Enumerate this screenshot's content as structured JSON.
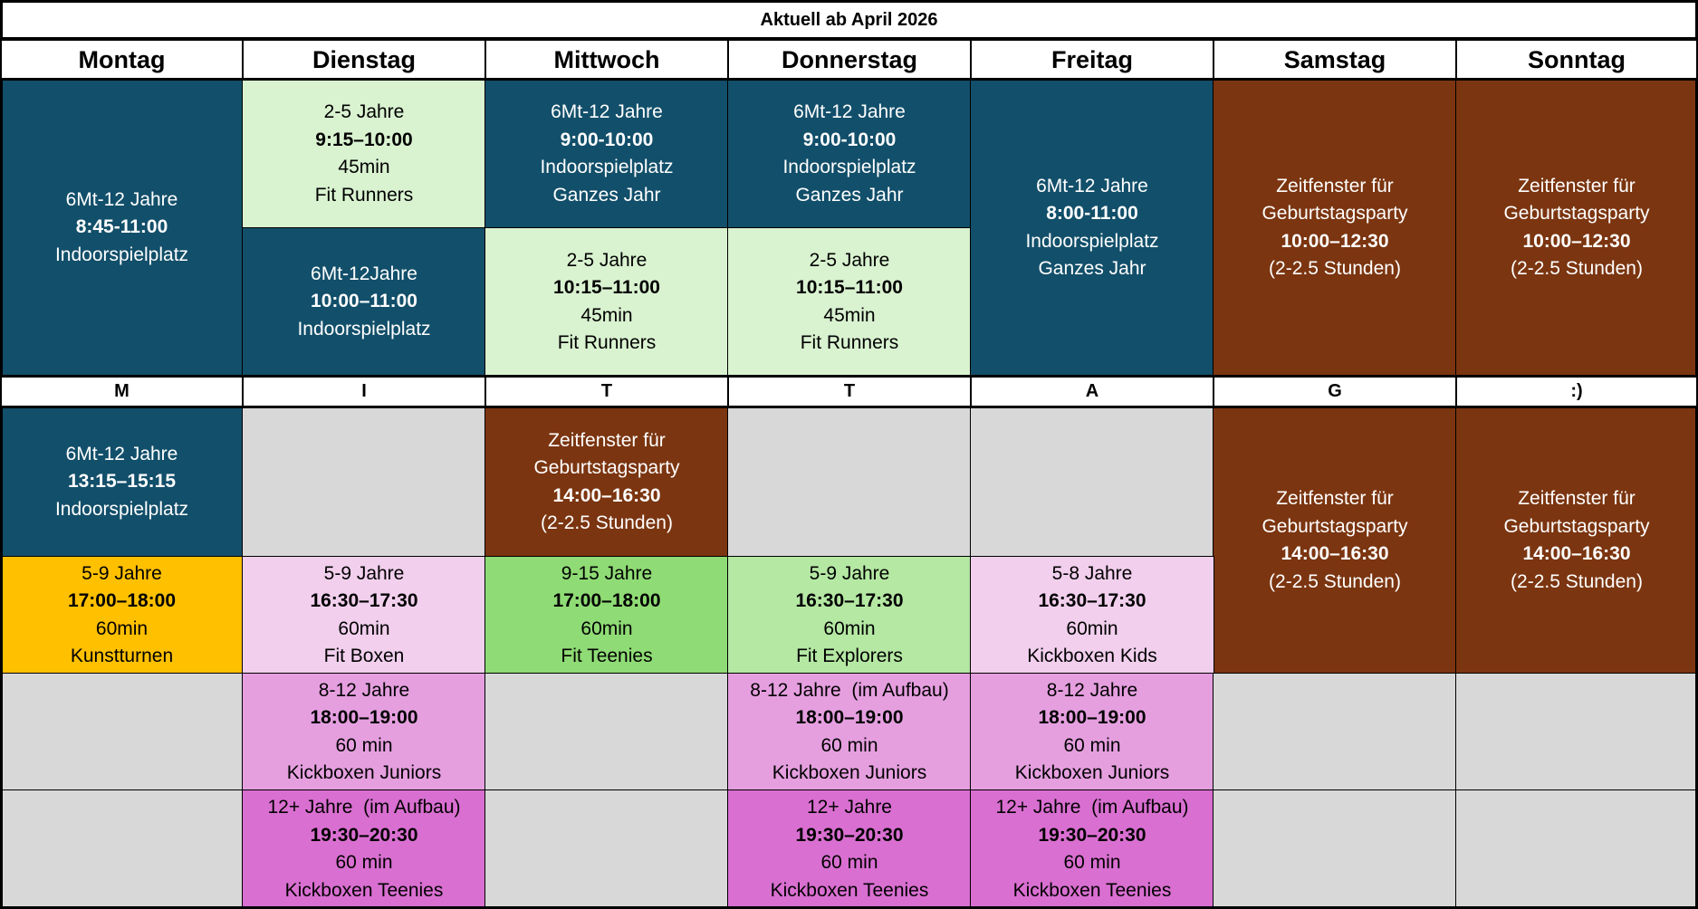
{
  "title": "Aktuell ab April 2026",
  "days": [
    "Montag",
    "Dienstag",
    "Mittwoch",
    "Donnerstag",
    "Freitag",
    "Samstag",
    "Sonntag"
  ],
  "divider_letters": [
    "M",
    "I",
    "T",
    "T",
    "A",
    "G",
    ":)"
  ],
  "colors": {
    "navy": "#124f6a",
    "brown": "#7b3510",
    "lightgreen": "#d9f2d0",
    "gray": "#d8d8d8",
    "orange": "#ffc000",
    "lightpink": "#f1cfed",
    "green": "#8fdb75",
    "palegreen": "#b4e8a3",
    "pink": "#e59fdf",
    "magenta": "#d96fd1"
  },
  "sessions": {
    "mo_morning": {
      "age": "6Mt-12 Jahre",
      "time": "8:45-11:00",
      "name": "Indoorspielplatz"
    },
    "mo_afternoon": {
      "age": "6Mt-12 Jahre",
      "time": "13:15–15:15",
      "name": "Indoorspielplatz"
    },
    "mo_evening": {
      "age": "5-9 Jahre",
      "time": "17:00–18:00",
      "duration": "60min",
      "name": "Kunstturnen"
    },
    "di_morning_1": {
      "age": "2-5 Jahre",
      "time": "9:15–10:00",
      "duration": "45min",
      "name": "Fit Runners"
    },
    "di_morning_2": {
      "age": "6Mt-12Jahre",
      "time": "10:00–11:00",
      "name": "Indoorspielplatz"
    },
    "di_evening_1": {
      "age": "5-9 Jahre",
      "time": "16:30–17:30",
      "duration": "60min",
      "name": "Fit Boxen"
    },
    "di_evening_2": {
      "age": "8-12 Jahre",
      "time": "18:00–19:00",
      "duration": "60 min",
      "name": "Kickboxen Juniors"
    },
    "di_evening_3": {
      "age": "12+ Jahre  (im Aufbau)",
      "time": "19:30–20:30",
      "duration": "60 min",
      "name": "Kickboxen Teenies"
    },
    "mi_morning_1": {
      "age": "6Mt-12 Jahre",
      "time": "9:00-10:00",
      "name": "Indoorspielplatz",
      "note": "Ganzes Jahr"
    },
    "mi_morning_2": {
      "age": "2-5 Jahre",
      "time": "10:15–11:00",
      "duration": "45min",
      "name": "Fit Runners"
    },
    "mi_afternoon": {
      "name": "Zeitfenster für",
      "name2": "Geburtstagsparty",
      "time": "14:00–16:30",
      "note": "(2-2.5 Stunden)"
    },
    "mi_evening_1": {
      "age": "9-15 Jahre",
      "time": "17:00–18:00",
      "duration": "60min",
      "name": "Fit Teenies"
    },
    "do_morning_1": {
      "age": "6Mt-12 Jahre",
      "time": "9:00-10:00",
      "name": "Indoorspielplatz",
      "note": "Ganzes Jahr"
    },
    "do_morning_2": {
      "age": "2-5 Jahre",
      "time": "10:15–11:00",
      "duration": "45min",
      "name": "Fit Runners"
    },
    "do_evening_1": {
      "age": "5-9 Jahre",
      "time": "16:30–17:30",
      "duration": "60min",
      "name": "Fit Explorers"
    },
    "do_evening_2": {
      "age": "8-12 Jahre  (im Aufbau)",
      "time": "18:00–19:00",
      "duration": "60 min",
      "name": "Kickboxen Juniors"
    },
    "do_evening_3": {
      "age": "12+ Jahre",
      "time": "19:30–20:30",
      "duration": "60 min",
      "name": "Kickboxen Teenies"
    },
    "fr_morning": {
      "age": "6Mt-12 Jahre",
      "time": "8:00-11:00",
      "name": "Indoorspielplatz",
      "note": "Ganzes Jahr"
    },
    "fr_evening_1": {
      "age": "5-8 Jahre",
      "time": "16:30–17:30",
      "duration": "60min",
      "name": "Kickboxen Kids"
    },
    "fr_evening_2": {
      "age": "8-12 Jahre",
      "time": "18:00–19:00",
      "duration": "60 min",
      "name": "Kickboxen Juniors"
    },
    "fr_evening_3": {
      "age": "12+ Jahre  (im Aufbau)",
      "time": "19:30–20:30",
      "duration": "60 min",
      "name": "Kickboxen Teenies"
    },
    "sa_morning": {
      "name": "Zeitfenster für",
      "name2": "Geburtstagsparty",
      "time": "10:00–12:30",
      "note": "(2-2.5 Stunden)"
    },
    "sa_afternoon": {
      "name": "Zeitfenster für",
      "name2": "Geburtstagsparty",
      "time": "14:00–16:30",
      "note": "(2-2.5 Stunden)"
    },
    "so_morning": {
      "name": "Zeitfenster für",
      "name2": "Geburtstagsparty",
      "time": "10:00–12:30",
      "note": "(2-2.5 Stunden)"
    },
    "so_afternoon": {
      "name": "Zeitfenster für",
      "name2": "Geburtstagsparty",
      "time": "14:00–16:30",
      "note": "(2-2.5 Stunden)"
    }
  }
}
